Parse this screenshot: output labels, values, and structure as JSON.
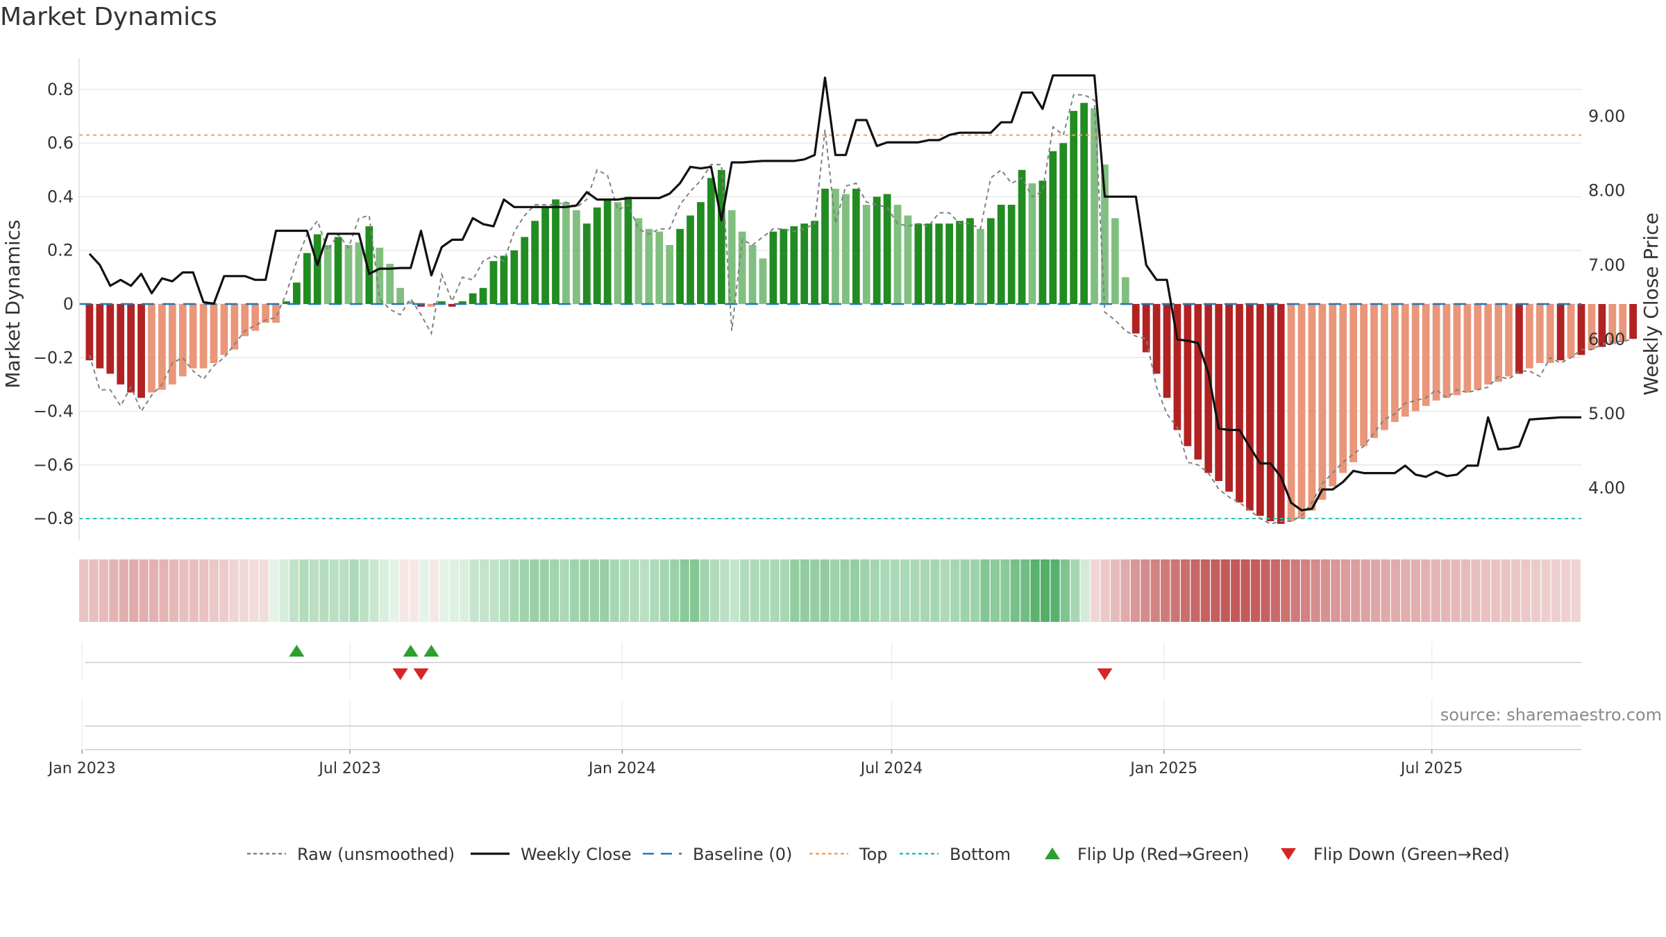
{
  "title": "Market Dynamics",
  "source": "source: sharemaestro.com",
  "chart_data": {
    "type": "bar",
    "xlabel": "",
    "ylabel": "Market Dynamics",
    "y2label": "Weekly Close Price",
    "ylim": [
      -0.88,
      0.88
    ],
    "y2lim": [
      3.3,
      9.65
    ],
    "yticks": [
      0.8,
      0.6,
      0.4,
      0.2,
      0,
      -0.2,
      -0.4,
      -0.6,
      -0.8
    ],
    "ytick_labels": [
      "0.8",
      "0.6",
      "0.4",
      "0.2",
      "0",
      "−0.2",
      "−0.4",
      "−0.6",
      "−0.8"
    ],
    "y2ticks": [
      9.0,
      8.0,
      7.0,
      6.0,
      5.0,
      4.0
    ],
    "y2tick_labels": [
      "9.00",
      "8.00",
      "7.00",
      "6.00",
      "5.00",
      "4.00"
    ],
    "xticks": [
      "2023-01-01",
      "2023-07-01",
      "2024-01-01",
      "2024-07-01",
      "2025-01-01",
      "2025-07-01"
    ],
    "xtick_labels": [
      "Jan 2023",
      "Jul 2023",
      "Jan 2024",
      "Jul 2024",
      "Jan 2025",
      "Jul 2025"
    ],
    "x_start": "2022-12-30",
    "x_end": "2025-10-10",
    "week_start": "2023-01-06",
    "top_line": 0.63,
    "bottom_line": -0.8,
    "baseline": 0,
    "grid": true,
    "legend_position": "bottom",
    "colors": {
      "strong_green": "#228b22",
      "light_green": "#80bf80",
      "strong_red": "#b22222",
      "light_red": "#e9967a",
      "close": "#111111",
      "raw": "#808080",
      "baseline": "#1f77b4",
      "top": "#f0a060",
      "bottom": "#20c0c0",
      "flip_up": "#2ca02c",
      "flip_down": "#d62728"
    },
    "series": [
      {
        "name": "Market Dynamics",
        "values": [
          -0.21,
          -0.24,
          -0.26,
          -0.3,
          -0.33,
          -0.35,
          -0.33,
          -0.32,
          -0.3,
          -0.27,
          -0.24,
          -0.24,
          -0.22,
          -0.19,
          -0.17,
          -0.12,
          -0.1,
          -0.07,
          -0.07,
          0.01,
          0.08,
          0.19,
          0.26,
          0.22,
          0.25,
          0.22,
          0.23,
          0.29,
          0.21,
          0.15,
          0.06,
          0.01,
          -0.01,
          -0.01,
          0.01,
          -0.01,
          0.01,
          0.04,
          0.06,
          0.16,
          0.18,
          0.2,
          0.25,
          0.31,
          0.36,
          0.39,
          0.38,
          0.35,
          0.3,
          0.36,
          0.39,
          0.38,
          0.4,
          0.32,
          0.28,
          0.27,
          0.22,
          0.28,
          0.33,
          0.38,
          0.47,
          0.5,
          0.35,
          0.27,
          0.22,
          0.17,
          0.27,
          0.28,
          0.29,
          0.3,
          0.31,
          0.43,
          0.43,
          0.41,
          0.43,
          0.37,
          0.4,
          0.41,
          0.37,
          0.33,
          0.3,
          0.3,
          0.3,
          0.3,
          0.31,
          0.32,
          0.28,
          0.32,
          0.37,
          0.37,
          0.5,
          0.45,
          0.46,
          0.57,
          0.6,
          0.72,
          0.75,
          0.73,
          0.52,
          0.32,
          0.1,
          -0.11,
          -0.18,
          -0.26,
          -0.35,
          -0.47,
          -0.53,
          -0.58,
          -0.63,
          -0.66,
          -0.7,
          -0.74,
          -0.77,
          -0.79,
          -0.81,
          -0.82,
          -0.81,
          -0.8,
          -0.77,
          -0.73,
          -0.68,
          -0.63,
          -0.59,
          -0.53,
          -0.5,
          -0.47,
          -0.44,
          -0.42,
          -0.4,
          -0.38,
          -0.36,
          -0.35,
          -0.34,
          -0.33,
          -0.32,
          -0.3,
          -0.29,
          -0.27,
          -0.26,
          -0.24,
          -0.22,
          -0.22,
          -0.21,
          -0.2,
          -0.19,
          -0.17,
          -0.16,
          -0.15,
          -0.14,
          -0.13
        ],
        "kind": [
          1,
          1,
          1,
          1,
          1,
          1,
          0,
          0,
          0,
          0,
          0,
          0,
          0,
          0,
          0,
          0,
          0,
          0,
          0,
          1,
          1,
          1,
          1,
          0,
          1,
          0,
          0,
          1,
          0,
          0,
          0,
          0,
          1,
          0,
          1,
          1,
          1,
          1,
          1,
          1,
          1,
          1,
          1,
          1,
          1,
          1,
          0,
          0,
          1,
          1,
          1,
          0,
          1,
          0,
          0,
          0,
          0,
          1,
          1,
          1,
          1,
          1,
          0,
          0,
          0,
          0,
          1,
          1,
          1,
          1,
          1,
          1,
          0,
          0,
          1,
          0,
          1,
          1,
          0,
          0,
          1,
          1,
          1,
          1,
          1,
          1,
          0,
          1,
          1,
          1,
          1,
          0,
          1,
          1,
          1,
          1,
          1,
          0,
          0,
          0,
          0,
          1,
          1,
          1,
          1,
          1,
          1,
          1,
          1,
          1,
          1,
          1,
          1,
          1,
          1,
          1,
          0,
          0,
          0,
          0,
          0,
          0,
          0,
          0,
          0,
          0,
          0,
          0,
          0,
          0,
          0,
          0,
          0,
          0,
          0,
          0,
          0,
          0,
          1,
          0,
          0,
          0,
          1,
          0,
          1,
          0,
          1,
          0,
          0,
          1,
          1,
          0
        ]
      },
      {
        "name": "Raw (unsmoothed)",
        "values": [
          -0.19,
          -0.32,
          -0.32,
          -0.38,
          -0.31,
          -0.4,
          -0.34,
          -0.3,
          -0.22,
          -0.2,
          -0.25,
          -0.28,
          -0.23,
          -0.2,
          -0.15,
          -0.1,
          -0.08,
          -0.06,
          -0.05,
          0.04,
          0.16,
          0.26,
          0.31,
          0.2,
          0.26,
          0.21,
          0.32,
          0.33,
          0.02,
          -0.02,
          -0.04,
          0.02,
          -0.04,
          -0.11,
          0.11,
          0.01,
          0.1,
          0.09,
          0.16,
          0.18,
          0.16,
          0.27,
          0.33,
          0.37,
          0.37,
          0.37,
          0.38,
          0.36,
          0.39,
          0.5,
          0.48,
          0.35,
          0.37,
          0.28,
          0.26,
          0.28,
          0.28,
          0.37,
          0.42,
          0.46,
          0.52,
          0.52,
          -0.1,
          0.24,
          0.22,
          0.25,
          0.28,
          0.28,
          0.27,
          0.28,
          0.3,
          0.65,
          0.3,
          0.44,
          0.45,
          0.38,
          0.37,
          0.36,
          0.3,
          0.29,
          0.3,
          0.29,
          0.34,
          0.34,
          0.3,
          0.3,
          0.28,
          0.47,
          0.5,
          0.45,
          0.47,
          0.4,
          0.42,
          0.66,
          0.63,
          0.78,
          0.78,
          0.76,
          -0.03,
          -0.06,
          -0.1,
          -0.12,
          -0.13,
          -0.31,
          -0.41,
          -0.46,
          -0.59,
          -0.6,
          -0.63,
          -0.69,
          -0.72,
          -0.74,
          -0.77,
          -0.8,
          -0.82,
          -0.81,
          -0.81,
          -0.79,
          -0.74,
          -0.67,
          -0.63,
          -0.59,
          -0.56,
          -0.53,
          -0.48,
          -0.43,
          -0.41,
          -0.37,
          -0.36,
          -0.35,
          -0.32,
          -0.35,
          -0.32,
          -0.33,
          -0.32,
          -0.31,
          -0.27,
          -0.28,
          -0.25,
          -0.25,
          -0.27,
          -0.2,
          -0.22,
          -0.2,
          -0.17,
          -0.17,
          -0.15,
          -0.14,
          -0.14,
          -0.13
        ]
      },
      {
        "name": "Weekly Close",
        "axis": "right",
        "values": [
          7.15,
          7.0,
          6.72,
          6.8,
          6.72,
          6.88,
          6.62,
          6.82,
          6.78,
          6.9,
          6.9,
          6.5,
          6.48,
          6.85,
          6.85,
          6.85,
          6.8,
          6.8,
          7.46,
          7.46,
          7.46,
          7.46,
          7.0,
          7.42,
          7.42,
          7.42,
          7.42,
          6.88,
          6.95,
          6.95,
          6.96,
          6.96,
          7.46,
          6.86,
          7.24,
          7.34,
          7.34,
          7.63,
          7.55,
          7.52,
          7.88,
          7.78,
          7.78,
          7.78,
          7.78,
          7.78,
          7.78,
          7.8,
          7.98,
          7.88,
          7.88,
          7.88,
          7.9,
          7.9,
          7.9,
          7.9,
          7.96,
          8.1,
          8.32,
          8.3,
          8.32,
          7.6,
          8.38,
          8.38,
          8.39,
          8.4,
          8.4,
          8.4,
          8.4,
          8.42,
          8.48,
          9.52,
          8.48,
          8.48,
          8.95,
          8.95,
          8.6,
          8.65,
          8.65,
          8.65,
          8.65,
          8.68,
          8.68,
          8.75,
          8.78,
          8.78,
          8.78,
          8.78,
          8.92,
          8.92,
          9.32,
          9.32,
          9.1,
          9.55,
          9.55,
          9.55,
          9.55,
          9.55,
          7.92,
          7.92,
          7.92,
          7.92,
          7.0,
          6.8,
          6.8,
          6.0,
          5.98,
          5.95,
          5.55,
          4.8,
          4.78,
          4.78,
          4.55,
          4.33,
          4.33,
          4.15,
          3.8,
          3.7,
          3.72,
          3.98,
          3.98,
          4.08,
          4.23,
          4.2,
          4.2,
          4.2,
          4.2,
          4.3,
          4.18,
          4.15,
          4.22,
          4.16,
          4.18,
          4.3,
          4.3,
          4.95,
          4.52,
          4.53,
          4.56,
          4.92,
          4.93,
          4.94,
          4.95,
          4.95,
          4.95
        ]
      }
    ],
    "regime_strip": [
      -0.21,
      -0.24,
      -0.26,
      -0.3,
      -0.33,
      -0.35,
      -0.33,
      -0.32,
      -0.3,
      -0.27,
      -0.24,
      -0.24,
      -0.22,
      -0.19,
      -0.17,
      -0.12,
      -0.1,
      -0.07,
      -0.07,
      0.01,
      0.08,
      0.19,
      0.26,
      0.22,
      0.25,
      0.22,
      0.23,
      0.29,
      0.21,
      0.15,
      0.06,
      0.01,
      -0.01,
      -0.01,
      0.01,
      -0.01,
      0.01,
      0.04,
      0.06,
      0.16,
      0.18,
      0.2,
      0.25,
      0.31,
      0.36,
      0.39,
      0.38,
      0.35,
      0.3,
      0.36,
      0.39,
      0.38,
      0.4,
      0.32,
      0.28,
      0.27,
      0.22,
      0.28,
      0.33,
      0.38,
      0.47,
      0.5,
      0.35,
      0.27,
      0.22,
      0.17,
      0.27,
      0.28,
      0.29,
      0.3,
      0.31,
      0.43,
      0.43,
      0.41,
      0.43,
      0.37,
      0.4,
      0.41,
      0.37,
      0.33,
      0.3,
      0.3,
      0.3,
      0.3,
      0.31,
      0.32,
      0.28,
      0.32,
      0.37,
      0.37,
      0.5,
      0.45,
      0.46,
      0.57,
      0.6,
      0.72,
      0.75,
      0.73,
      0.52,
      0.32,
      0.1,
      -0.11,
      -0.18,
      -0.26,
      -0.35,
      -0.47,
      -0.53,
      -0.58,
      -0.63,
      -0.66,
      -0.7,
      -0.74,
      -0.77,
      -0.79,
      -0.81,
      -0.82,
      -0.81,
      -0.8,
      -0.77,
      -0.73,
      -0.68,
      -0.63,
      -0.59,
      -0.53,
      -0.5,
      -0.47,
      -0.44,
      -0.42,
      -0.4,
      -0.38,
      -0.36,
      -0.35,
      -0.34,
      -0.33,
      -0.32,
      -0.3,
      -0.29,
      -0.27,
      -0.26,
      -0.24,
      -0.22,
      -0.22,
      -0.21,
      -0.2,
      -0.19,
      -0.17,
      -0.16,
      -0.15,
      -0.14,
      -0.13
    ],
    "flip_up_dates": [
      "2023-05-26",
      "2023-08-11",
      "2023-08-25"
    ],
    "flip_down_dates": [
      "2023-08-04",
      "2023-08-18",
      "2024-11-22"
    ]
  },
  "legend": {
    "items": [
      {
        "label": "Raw (unsmoothed)",
        "icon": "dotted-line-icon",
        "color": "#808080"
      },
      {
        "label": "Weekly Close",
        "icon": "solid-line-icon",
        "color": "#111111"
      },
      {
        "label": "Baseline (0)",
        "icon": "dashed-line-icon",
        "color": "#1f77b4"
      },
      {
        "label": "Top",
        "icon": "dotted-line-icon",
        "color": "#f0a060"
      },
      {
        "label": "Bottom",
        "icon": "dotted-line-icon",
        "color": "#20c0c0"
      },
      {
        "label": "Flip Up (Red→Green)",
        "icon": "triangle-up-icon",
        "color": "#2ca02c"
      },
      {
        "label": "Flip Down (Green→Red)",
        "icon": "triangle-down-icon",
        "color": "#d62728"
      }
    ]
  }
}
